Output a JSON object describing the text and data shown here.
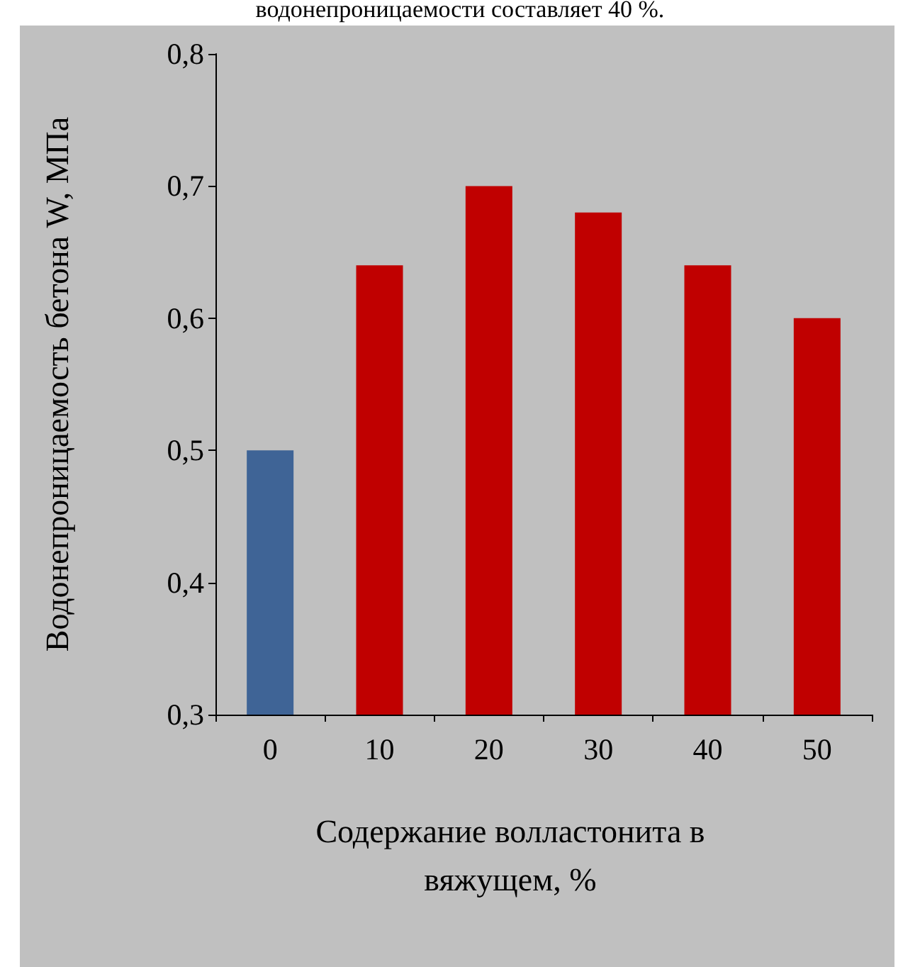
{
  "chart_data": {
    "type": "bar",
    "xlabel": "Содержание волластонита в вяжущем, %",
    "ylabel": "Водонепроницаемость бетона W, МПа",
    "categories": [
      "0",
      "10",
      "20",
      "30",
      "40",
      "50"
    ],
    "values": [
      0.5,
      0.64,
      0.7,
      0.68,
      0.64,
      0.6
    ],
    "colors": [
      "#3f6496",
      "#c00000",
      "#c00000",
      "#c00000",
      "#c00000",
      "#c00000"
    ],
    "ylim": [
      0.3,
      0.8
    ],
    "yticks": [
      {
        "value": 0.3,
        "label": "0,3"
      },
      {
        "value": 0.4,
        "label": "0,4"
      },
      {
        "value": 0.5,
        "label": "0,5"
      },
      {
        "value": 0.6,
        "label": "0,6"
      },
      {
        "value": 0.7,
        "label": "0,7"
      },
      {
        "value": 0.8,
        "label": "0,8"
      }
    ],
    "grid": false,
    "annotations": [
      "водонепроницаемости составляет 40 %."
    ]
  }
}
